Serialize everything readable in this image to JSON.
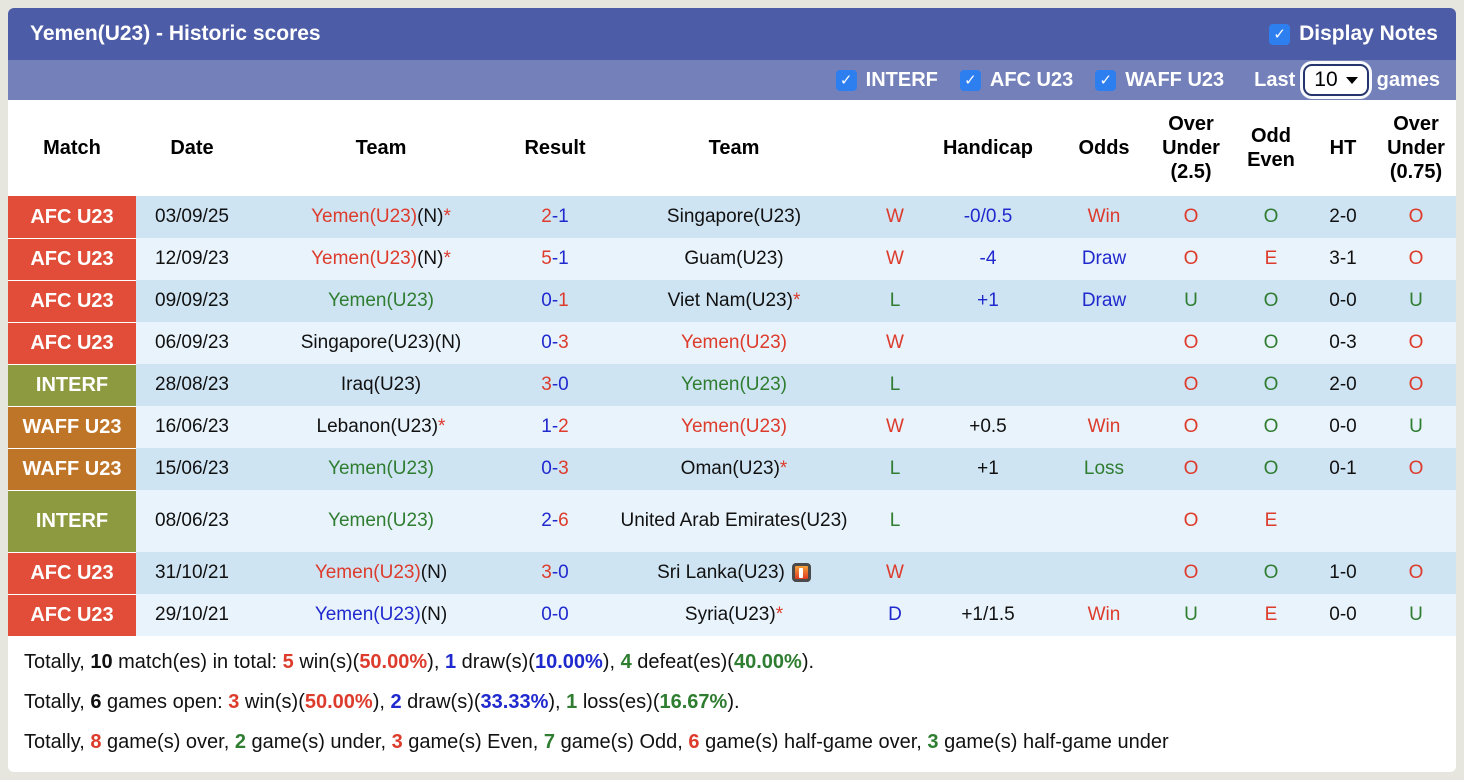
{
  "header": {
    "title": "Yemen(U23) - Historic scores",
    "display_notes_label": "Display Notes",
    "display_notes_checked": true,
    "filters": [
      {
        "label": "INTERF",
        "checked": true
      },
      {
        "label": "AFC U23",
        "checked": true
      },
      {
        "label": "WAFF U23",
        "checked": true
      }
    ],
    "last_label": "Last",
    "games_count": "10",
    "games_label": "games"
  },
  "colors": {
    "topbar": "#4d5ca6",
    "filterbar": "#7480b9",
    "checkbox_blue": "#2d7ff0",
    "badge_afc_u23": "#e14d39",
    "badge_interf": "#8e9a40",
    "badge_waff_u23": "#bf7527",
    "row_stripe_dark": "#cfe4f3",
    "row_stripe_light": "#e9f3fb",
    "text_win_red": "#dd3b2c",
    "text_loss_green": "#2f7d31",
    "text_draw_blue": "#2029cd"
  },
  "table": {
    "columns": [
      "Match",
      "Date",
      "Team",
      "Result",
      "Team",
      "",
      "Handicap",
      "Odds",
      "Over\nUnder\n(2.5)",
      "Odd\nEven",
      "HT",
      "Over\nUnder\n(0.75)"
    ],
    "rows": [
      {
        "comp": "AFC U23",
        "comp_class": "afc",
        "date": "03/09/25",
        "home": [
          {
            "t": "Yemen(U23)",
            "c": "red"
          },
          {
            "t": "(N)",
            "c": "black"
          },
          {
            "t": "*",
            "c": "red"
          }
        ],
        "result": [
          {
            "t": "2",
            "c": "red"
          },
          {
            "t": "-1",
            "c": "blue"
          }
        ],
        "away": [
          {
            "t": "Singapore(U23)",
            "c": "black"
          }
        ],
        "wl": [
          {
            "t": "W",
            "c": "red"
          }
        ],
        "handicap": [
          {
            "t": "-0/0.5",
            "c": "blue"
          }
        ],
        "odds": [
          {
            "t": "Win",
            "c": "red"
          }
        ],
        "ou25": [
          {
            "t": "O",
            "c": "red"
          }
        ],
        "oe": [
          {
            "t": "O",
            "c": "green"
          }
        ],
        "ht": [
          {
            "t": "2-0",
            "c": "black"
          }
        ],
        "ou075": [
          {
            "t": "O",
            "c": "red"
          }
        ]
      },
      {
        "comp": "AFC U23",
        "comp_class": "afc",
        "date": "12/09/23",
        "home": [
          {
            "t": "Yemen(U23)",
            "c": "red"
          },
          {
            "t": "(N)",
            "c": "black"
          },
          {
            "t": "*",
            "c": "red"
          }
        ],
        "result": [
          {
            "t": "5",
            "c": "red"
          },
          {
            "t": "-1",
            "c": "blue"
          }
        ],
        "away": [
          {
            "t": "Guam(U23)",
            "c": "black"
          }
        ],
        "wl": [
          {
            "t": "W",
            "c": "red"
          }
        ],
        "handicap": [
          {
            "t": "-4",
            "c": "blue"
          }
        ],
        "odds": [
          {
            "t": "Draw",
            "c": "blue"
          }
        ],
        "ou25": [
          {
            "t": "O",
            "c": "red"
          }
        ],
        "oe": [
          {
            "t": "E",
            "c": "red"
          }
        ],
        "ht": [
          {
            "t": "3-1",
            "c": "black"
          }
        ],
        "ou075": [
          {
            "t": "O",
            "c": "red"
          }
        ]
      },
      {
        "comp": "AFC U23",
        "comp_class": "afc",
        "date": "09/09/23",
        "home": [
          {
            "t": "Yemen(U23)",
            "c": "green"
          }
        ],
        "result": [
          {
            "t": "0-",
            "c": "blue"
          },
          {
            "t": "1",
            "c": "red"
          }
        ],
        "away": [
          {
            "t": "Viet Nam(U23)",
            "c": "black"
          },
          {
            "t": "*",
            "c": "red"
          }
        ],
        "wl": [
          {
            "t": "L",
            "c": "green"
          }
        ],
        "handicap": [
          {
            "t": "+1",
            "c": "blue"
          }
        ],
        "odds": [
          {
            "t": "Draw",
            "c": "blue"
          }
        ],
        "ou25": [
          {
            "t": "U",
            "c": "green"
          }
        ],
        "oe": [
          {
            "t": "O",
            "c": "green"
          }
        ],
        "ht": [
          {
            "t": "0-0",
            "c": "black"
          }
        ],
        "ou075": [
          {
            "t": "U",
            "c": "green"
          }
        ]
      },
      {
        "comp": "AFC U23",
        "comp_class": "afc",
        "date": "06/09/23",
        "home": [
          {
            "t": "Singapore(U23)(N)",
            "c": "black"
          }
        ],
        "result": [
          {
            "t": "0-",
            "c": "blue"
          },
          {
            "t": "3",
            "c": "red"
          }
        ],
        "away": [
          {
            "t": "Yemen(U23)",
            "c": "red"
          }
        ],
        "wl": [
          {
            "t": "W",
            "c": "red"
          }
        ],
        "handicap": [],
        "odds": [],
        "ou25": [
          {
            "t": "O",
            "c": "red"
          }
        ],
        "oe": [
          {
            "t": "O",
            "c": "green"
          }
        ],
        "ht": [
          {
            "t": "0-3",
            "c": "black"
          }
        ],
        "ou075": [
          {
            "t": "O",
            "c": "red"
          }
        ]
      },
      {
        "comp": "INTERF",
        "comp_class": "interf",
        "date": "28/08/23",
        "home": [
          {
            "t": "Iraq(U23)",
            "c": "black"
          }
        ],
        "result": [
          {
            "t": "3",
            "c": "red"
          },
          {
            "t": "-0",
            "c": "blue"
          }
        ],
        "away": [
          {
            "t": "Yemen(U23)",
            "c": "green"
          }
        ],
        "wl": [
          {
            "t": "L",
            "c": "green"
          }
        ],
        "handicap": [],
        "odds": [],
        "ou25": [
          {
            "t": "O",
            "c": "red"
          }
        ],
        "oe": [
          {
            "t": "O",
            "c": "green"
          }
        ],
        "ht": [
          {
            "t": "2-0",
            "c": "black"
          }
        ],
        "ou075": [
          {
            "t": "O",
            "c": "red"
          }
        ]
      },
      {
        "comp": "WAFF U23",
        "comp_class": "waff",
        "date": "16/06/23",
        "home": [
          {
            "t": "Lebanon(U23)",
            "c": "black"
          },
          {
            "t": "*",
            "c": "red"
          }
        ],
        "result": [
          {
            "t": "1-",
            "c": "blue"
          },
          {
            "t": "2",
            "c": "red"
          }
        ],
        "away": [
          {
            "t": "Yemen(U23)",
            "c": "red"
          }
        ],
        "wl": [
          {
            "t": "W",
            "c": "red"
          }
        ],
        "handicap": [
          {
            "t": "+0.5",
            "c": "black"
          }
        ],
        "odds": [
          {
            "t": "Win",
            "c": "red"
          }
        ],
        "ou25": [
          {
            "t": "O",
            "c": "red"
          }
        ],
        "oe": [
          {
            "t": "O",
            "c": "green"
          }
        ],
        "ht": [
          {
            "t": "0-0",
            "c": "black"
          }
        ],
        "ou075": [
          {
            "t": "U",
            "c": "green"
          }
        ]
      },
      {
        "comp": "WAFF U23",
        "comp_class": "waff",
        "date": "15/06/23",
        "home": [
          {
            "t": "Yemen(U23)",
            "c": "green"
          }
        ],
        "result": [
          {
            "t": "0-",
            "c": "blue"
          },
          {
            "t": "3",
            "c": "red"
          }
        ],
        "away": [
          {
            "t": "Oman(U23)",
            "c": "black"
          },
          {
            "t": "*",
            "c": "red"
          }
        ],
        "wl": [
          {
            "t": "L",
            "c": "green"
          }
        ],
        "handicap": [
          {
            "t": "+1",
            "c": "black"
          }
        ],
        "odds": [
          {
            "t": "Loss",
            "c": "green"
          }
        ],
        "ou25": [
          {
            "t": "O",
            "c": "red"
          }
        ],
        "oe": [
          {
            "t": "O",
            "c": "green"
          }
        ],
        "ht": [
          {
            "t": "0-1",
            "c": "black"
          }
        ],
        "ou075": [
          {
            "t": "O",
            "c": "red"
          }
        ]
      },
      {
        "comp": "INTERF",
        "comp_class": "interf",
        "date": "08/06/23",
        "tall": true,
        "home": [
          {
            "t": "Yemen(U23)",
            "c": "green"
          }
        ],
        "result": [
          {
            "t": "2-",
            "c": "blue"
          },
          {
            "t": "6",
            "c": "red"
          }
        ],
        "away": [
          {
            "t": "United Arab Emirates(U23)",
            "c": "black"
          }
        ],
        "wl": [
          {
            "t": "L",
            "c": "green"
          }
        ],
        "handicap": [],
        "odds": [],
        "ou25": [
          {
            "t": "O",
            "c": "red"
          }
        ],
        "oe": [
          {
            "t": "E",
            "c": "red"
          }
        ],
        "ht": [],
        "ou075": []
      },
      {
        "comp": "AFC U23",
        "comp_class": "afc",
        "date": "31/10/21",
        "home": [
          {
            "t": "Yemen(U23)",
            "c": "red"
          },
          {
            "t": "(N)",
            "c": "black"
          }
        ],
        "result": [
          {
            "t": "3",
            "c": "red"
          },
          {
            "t": "-0",
            "c": "blue"
          }
        ],
        "away": [
          {
            "t": "Sri Lanka(U23)",
            "c": "black"
          },
          {
            "icon": "red-card"
          }
        ],
        "wl": [
          {
            "t": "W",
            "c": "red"
          }
        ],
        "handicap": [],
        "odds": [],
        "ou25": [
          {
            "t": "O",
            "c": "red"
          }
        ],
        "oe": [
          {
            "t": "O",
            "c": "green"
          }
        ],
        "ht": [
          {
            "t": "1-0",
            "c": "black"
          }
        ],
        "ou075": [
          {
            "t": "O",
            "c": "red"
          }
        ]
      },
      {
        "comp": "AFC U23",
        "comp_class": "afc",
        "date": "29/10/21",
        "home": [
          {
            "t": "Yemen(U23)",
            "c": "blue"
          },
          {
            "t": "(N)",
            "c": "black"
          }
        ],
        "result": [
          {
            "t": "0-0",
            "c": "blue"
          }
        ],
        "away": [
          {
            "t": "Syria(U23)",
            "c": "black"
          },
          {
            "t": "*",
            "c": "red"
          }
        ],
        "wl": [
          {
            "t": "D",
            "c": "blue"
          }
        ],
        "handicap": [
          {
            "t": "+1/1.5",
            "c": "black"
          }
        ],
        "odds": [
          {
            "t": "Win",
            "c": "red"
          }
        ],
        "ou25": [
          {
            "t": "U",
            "c": "green"
          }
        ],
        "oe": [
          {
            "t": "E",
            "c": "red"
          }
        ],
        "ht": [
          {
            "t": "0-0",
            "c": "black"
          }
        ],
        "ou075": [
          {
            "t": "U",
            "c": "green"
          }
        ]
      }
    ]
  },
  "summary": [
    [
      {
        "t": "Totally, ",
        "c": "black"
      },
      {
        "t": "10",
        "c": "black",
        "b": true
      },
      {
        "t": " match(es) in total: ",
        "c": "black"
      },
      {
        "t": "5",
        "c": "red",
        "b": true
      },
      {
        "t": " win(s)(",
        "c": "black"
      },
      {
        "t": "50.00%",
        "c": "red",
        "b": true
      },
      {
        "t": "), ",
        "c": "black"
      },
      {
        "t": "1",
        "c": "blue",
        "b": true
      },
      {
        "t": " draw(s)(",
        "c": "black"
      },
      {
        "t": "10.00%",
        "c": "blue",
        "b": true
      },
      {
        "t": "), ",
        "c": "black"
      },
      {
        "t": "4",
        "c": "green",
        "b": true
      },
      {
        "t": " defeat(es)(",
        "c": "black"
      },
      {
        "t": "40.00%",
        "c": "green",
        "b": true
      },
      {
        "t": ").",
        "c": "black"
      }
    ],
    [
      {
        "t": "Totally, ",
        "c": "black"
      },
      {
        "t": "6",
        "c": "black",
        "b": true
      },
      {
        "t": " games open: ",
        "c": "black"
      },
      {
        "t": "3",
        "c": "red",
        "b": true
      },
      {
        "t": " win(s)(",
        "c": "black"
      },
      {
        "t": "50.00%",
        "c": "red",
        "b": true
      },
      {
        "t": "), ",
        "c": "black"
      },
      {
        "t": "2",
        "c": "blue",
        "b": true
      },
      {
        "t": " draw(s)(",
        "c": "black"
      },
      {
        "t": "33.33%",
        "c": "blue",
        "b": true
      },
      {
        "t": "), ",
        "c": "black"
      },
      {
        "t": "1",
        "c": "green",
        "b": true
      },
      {
        "t": " loss(es)(",
        "c": "black"
      },
      {
        "t": "16.67%",
        "c": "green",
        "b": true
      },
      {
        "t": ").",
        "c": "black"
      }
    ],
    [
      {
        "t": "Totally, ",
        "c": "black"
      },
      {
        "t": "8",
        "c": "red",
        "b": true
      },
      {
        "t": " game(s) over, ",
        "c": "black"
      },
      {
        "t": "2",
        "c": "green",
        "b": true
      },
      {
        "t": " game(s) under, ",
        "c": "black"
      },
      {
        "t": "3",
        "c": "red",
        "b": true
      },
      {
        "t": " game(s) Even, ",
        "c": "black"
      },
      {
        "t": "7",
        "c": "green",
        "b": true
      },
      {
        "t": " game(s) Odd, ",
        "c": "black"
      },
      {
        "t": "6",
        "c": "red",
        "b": true
      },
      {
        "t": " game(s) half-game over, ",
        "c": "black"
      },
      {
        "t": "3",
        "c": "green",
        "b": true
      },
      {
        "t": " game(s) half-game under",
        "c": "black"
      }
    ]
  ]
}
